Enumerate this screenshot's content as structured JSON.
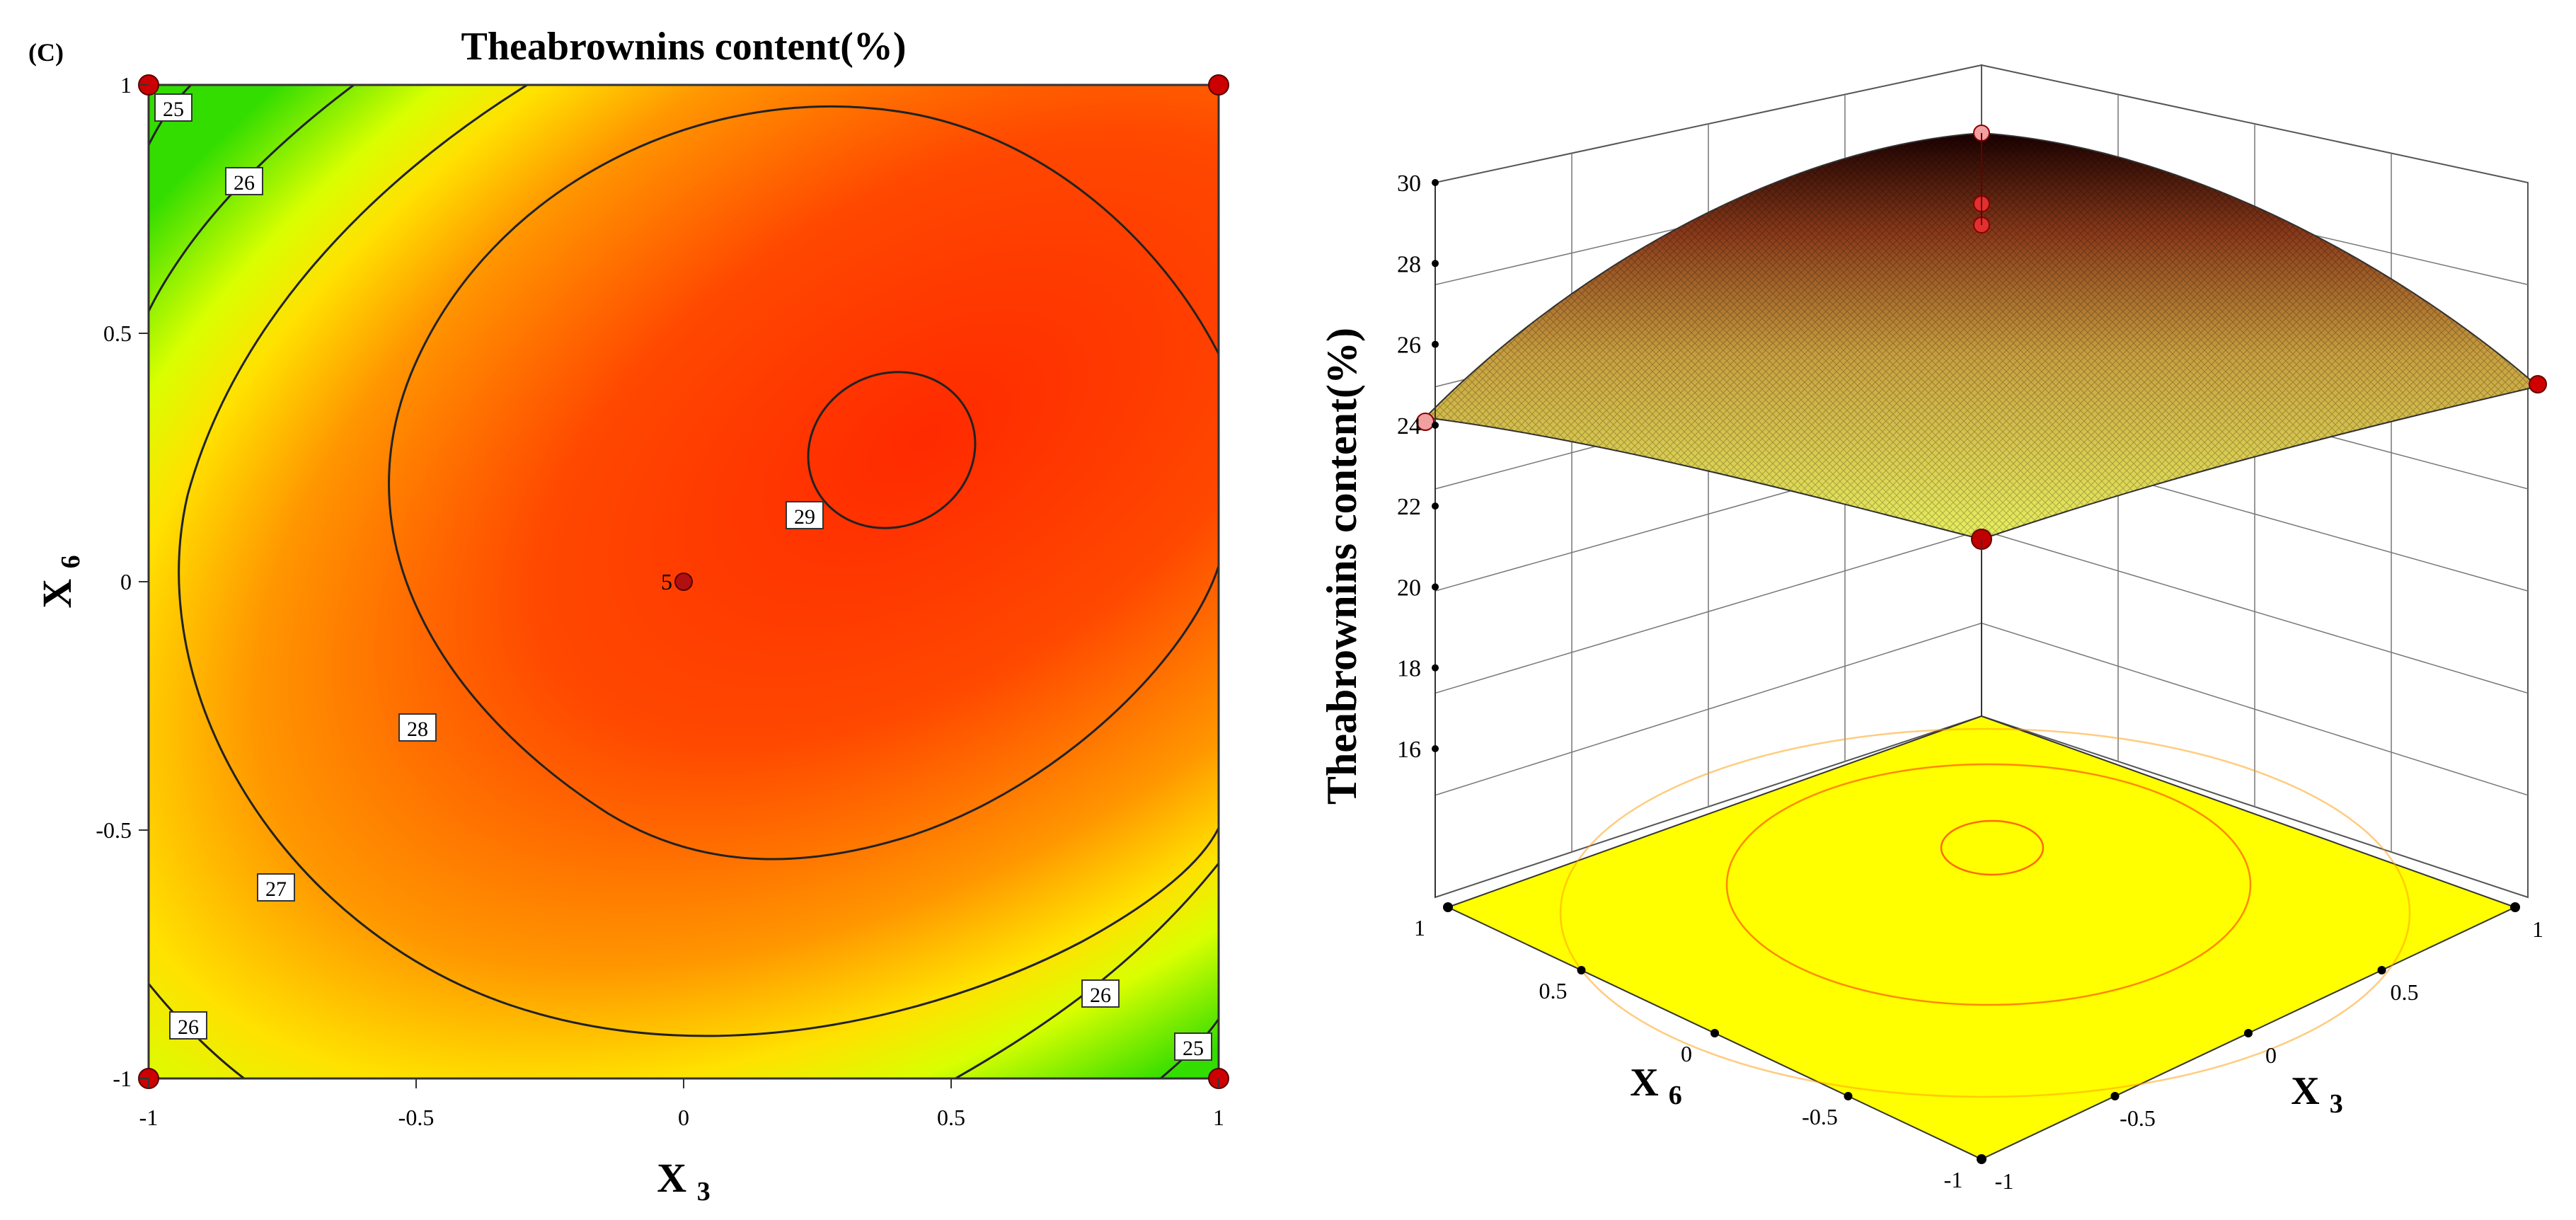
{
  "panel_label": "(C)",
  "chart_data": [
    {
      "type": "contour",
      "title": "Theabrownins content(%)",
      "xlabel": "X3",
      "ylabel": "X6",
      "xlim": [
        -1,
        1
      ],
      "ylim": [
        -1,
        1
      ],
      "x_ticks": [
        "-1",
        "-0.5",
        "0",
        "0.5",
        "1"
      ],
      "y_ticks": [
        "-1",
        "-0.5",
        "0",
        "0.5",
        "1"
      ],
      "contour_labels": [
        "25",
        "26",
        "26",
        "27",
        "28",
        "29",
        "26",
        "26",
        "25"
      ],
      "design_points": [
        {
          "x": -1,
          "y": 1
        },
        {
          "x": 1,
          "y": 1
        },
        {
          "x": -1,
          "y": -1
        },
        {
          "x": 1,
          "y": -1
        },
        {
          "x": 0,
          "y": 0,
          "label": "5"
        }
      ],
      "colors": {
        "high": "#ff2a00",
        "mid": "#ff9a00",
        "low_mid": "#ffff00",
        "low": "#33dd00"
      }
    },
    {
      "type": "surface3d",
      "zlabel": "Theabrownins content(%)",
      "xlabel": "X3",
      "ylabel": "X6",
      "z_ticks": [
        "16",
        "18",
        "20",
        "22",
        "24",
        "26",
        "28",
        "30"
      ],
      "x3_ticks": [
        "-1",
        "-0.5",
        "0",
        "0.5",
        "1"
      ],
      "x6_ticks": [
        "-1",
        "-0.5",
        "0",
        "0.5",
        "1"
      ],
      "zlim": [
        16,
        30
      ],
      "floor_color": "#ffff00"
    }
  ]
}
